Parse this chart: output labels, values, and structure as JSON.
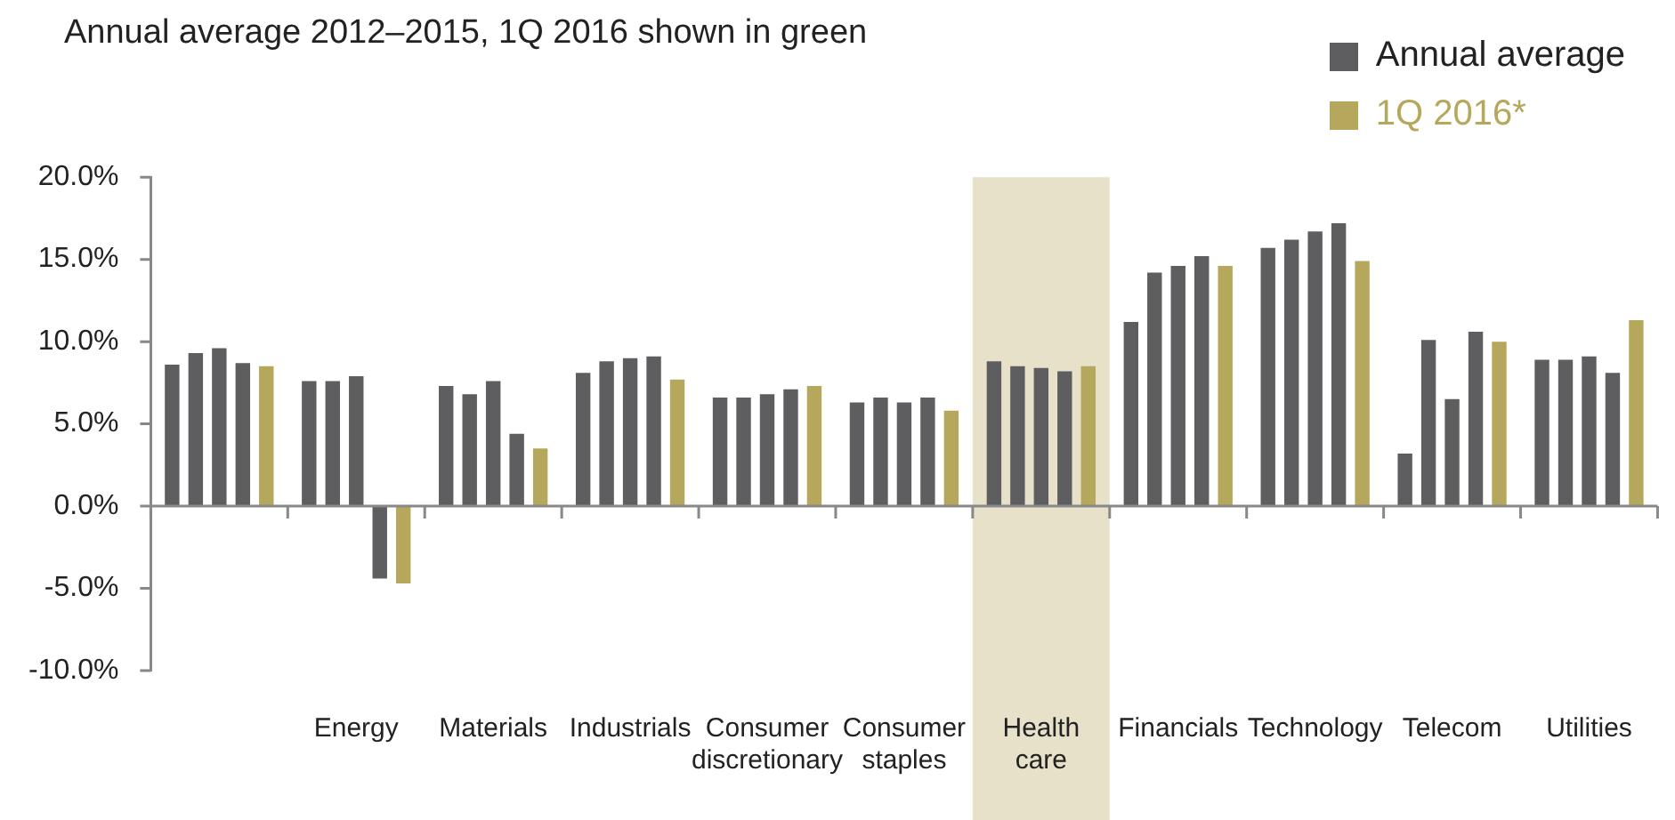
{
  "chart_data": {
    "type": "bar",
    "title": "Annual average 2012–2015, 1Q 2016 shown in green",
    "categories": [
      null,
      "Energy",
      "Materials",
      "Industrials",
      "Consumer discretionary",
      "Consumer staples",
      "Health care",
      "Financials",
      "Technology",
      "Telecom",
      "Utilities"
    ],
    "series": [
      {
        "name": "Annual average",
        "color": "#5e5e60",
        "values": [
          8.6,
          7.6,
          7.3,
          8.1,
          6.6,
          6.3,
          8.8,
          11.2,
          15.7,
          3.2,
          8.9
        ]
      },
      {
        "color": "#5e5e60",
        "values": [
          9.3,
          7.6,
          6.8,
          8.8,
          6.6,
          6.6,
          8.5,
          14.2,
          16.2,
          10.1,
          8.9
        ]
      },
      {
        "color": "#5e5e60",
        "values": [
          9.6,
          7.9,
          7.6,
          9.0,
          6.8,
          6.3,
          8.4,
          14.6,
          16.7,
          6.5,
          9.1
        ]
      },
      {
        "color": "#5e5e60",
        "values": [
          8.7,
          -4.4,
          4.4,
          9.1,
          7.1,
          6.6,
          8.2,
          15.2,
          17.2,
          10.6,
          8.1
        ]
      },
      {
        "name": "1Q 2016*",
        "color": "#b5a75c",
        "values": [
          8.5,
          -4.7,
          3.5,
          7.7,
          7.3,
          5.8,
          8.5,
          14.6,
          14.9,
          10.0,
          11.3
        ]
      }
    ],
    "ylim": [
      -10,
      20
    ],
    "yticks": [
      {
        "value": -10,
        "label": "-10.0%"
      },
      {
        "value": -5,
        "label": "-5.0%"
      },
      {
        "value": 0,
        "label": "0.0%"
      },
      {
        "value": 5,
        "label": "5.0%"
      },
      {
        "value": 10,
        "label": "10.0%"
      },
      {
        "value": 15,
        "label": "15.0%"
      },
      {
        "value": 20,
        "label": "20.0%"
      }
    ],
    "bands": [
      {
        "axis": "x",
        "from": "Health care",
        "to": "Health care",
        "color": "#e8e1c9"
      }
    ],
    "ref_lines": [
      {
        "axis": "y",
        "value": 0,
        "color": "#888888"
      }
    ],
    "grid": false,
    "legend": "top right"
  }
}
